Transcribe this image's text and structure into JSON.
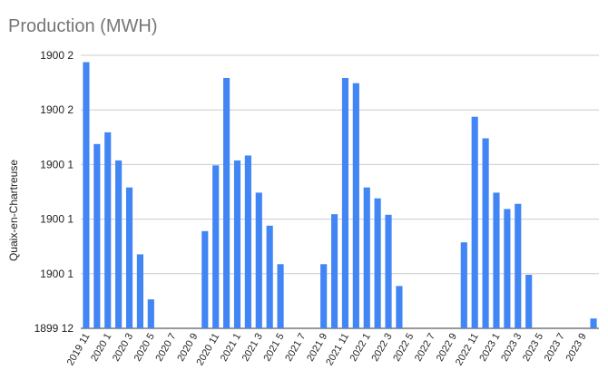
{
  "chart_data": {
    "type": "bar",
    "title": "Production (MWH)",
    "ylabel": "Quaix-en-Chartreuse",
    "xlabel": "",
    "color": "#4285f4",
    "grid": true,
    "ylim": [
      0,
      100
    ],
    "yticks": [
      {
        "value": 0,
        "label": "1899 12"
      },
      {
        "value": 20,
        "label": "1900 1"
      },
      {
        "value": 40,
        "label": "1900 1"
      },
      {
        "value": 60,
        "label": "1900 1"
      },
      {
        "value": 80,
        "label": "1900 2"
      },
      {
        "value": 100,
        "label": "1900 2"
      }
    ],
    "categories": [
      "2019 11",
      "2019 12",
      "2020 1",
      "2020 2",
      "2020 3",
      "2020 4",
      "2020 5",
      "2020 6",
      "2020 7",
      "2020 8",
      "2020 9",
      "2020 10",
      "2020 11",
      "2020 12",
      "2021 1",
      "2021 2",
      "2021 3",
      "2021 4",
      "2021 5",
      "2021 6",
      "2021 7",
      "2021 8",
      "2021 9",
      "2021 10",
      "2021 11",
      "2021 12",
      "2022 1",
      "2022 2",
      "2022 3",
      "2022 4",
      "2022 5",
      "2022 6",
      "2022 7",
      "2022 8",
      "2022 9",
      "2022 10",
      "2022 11",
      "2022 12",
      "2023 1",
      "2023 2",
      "2023 3",
      "2023 4",
      "2023 5",
      "2023 6",
      "2023 7",
      "2023 8",
      "2023 9",
      "2023 10"
    ],
    "tick_labels_shown": [
      "2019 11",
      "2020 1",
      "2020 3",
      "2020 5",
      "2020 7",
      "2020 9",
      "2020 11",
      "2021 1",
      "2021 3",
      "2021 5",
      "2021 7",
      "2021 9",
      "2021 11",
      "2022 1",
      "2022 3",
      "2022 5",
      "2022 7",
      "2022 9",
      "2022 11",
      "2023 1",
      "2023 3",
      "2023 5",
      "2023 7",
      "2023 9"
    ],
    "values": [
      97.5,
      67.5,
      71.8,
      61.5,
      51.6,
      27.1,
      10.6,
      0,
      0,
      0,
      0,
      35.6,
      59.7,
      91.7,
      61.5,
      63.3,
      49.7,
      37.6,
      23.5,
      0,
      0,
      0,
      23.5,
      41.8,
      91.7,
      89.8,
      51.6,
      47.6,
      41.6,
      15.5,
      0,
      0,
      0,
      0,
      0,
      31.5,
      77.5,
      69.6,
      49.7,
      43.7,
      45.6,
      19.6,
      0,
      0,
      0,
      0,
      0,
      3.6
    ]
  }
}
